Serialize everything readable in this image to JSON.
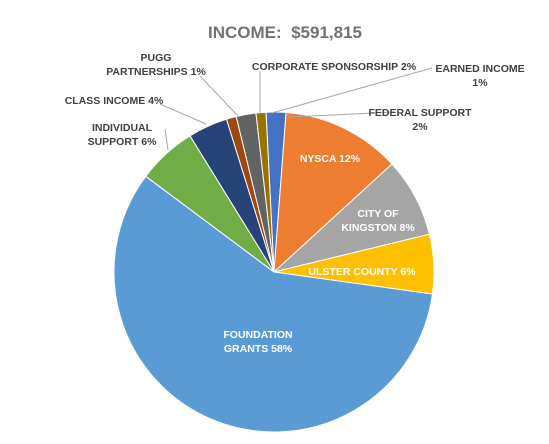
{
  "chart_data": {
    "type": "pie",
    "title": "INCOME:  $591,815",
    "slices": [
      {
        "label_lines": [
          "FEDERAL SUPPORT",
          "2%"
        ],
        "value": 2,
        "color": "#4472c4"
      },
      {
        "label_lines": [
          "NYSCA 12%"
        ],
        "value": 12,
        "color": "#ed7d31"
      },
      {
        "label_lines": [
          "CITY OF",
          "KINGSTON 8%"
        ],
        "value": 8,
        "color": "#a5a5a5"
      },
      {
        "label_lines": [
          "ULSTER COUNTY 6%"
        ],
        "value": 6,
        "color": "#ffc000"
      },
      {
        "label_lines": [
          "FOUNDATION",
          "GRANTS 58%"
        ],
        "value": 58,
        "color": "#5b9bd5"
      },
      {
        "label_lines": [
          "INDIVIDUAL",
          "SUPPORT 6%"
        ],
        "value": 6,
        "color": "#70ad47"
      },
      {
        "label_lines": [
          "CLASS INCOME 4%"
        ],
        "value": 4,
        "color": "#264478"
      },
      {
        "label_lines": [
          "PUGG",
          "PARTNERSHIPS 1%"
        ],
        "value": 1,
        "color": "#9e480e"
      },
      {
        "label_lines": [
          "CORPORATE SPONSORSHIP 2%"
        ],
        "value": 2,
        "color": "#636363"
      },
      {
        "label_lines": [
          "EARNED INCOME",
          "1%"
        ],
        "value": 1,
        "color": "#997300"
      }
    ],
    "legend": "none"
  }
}
